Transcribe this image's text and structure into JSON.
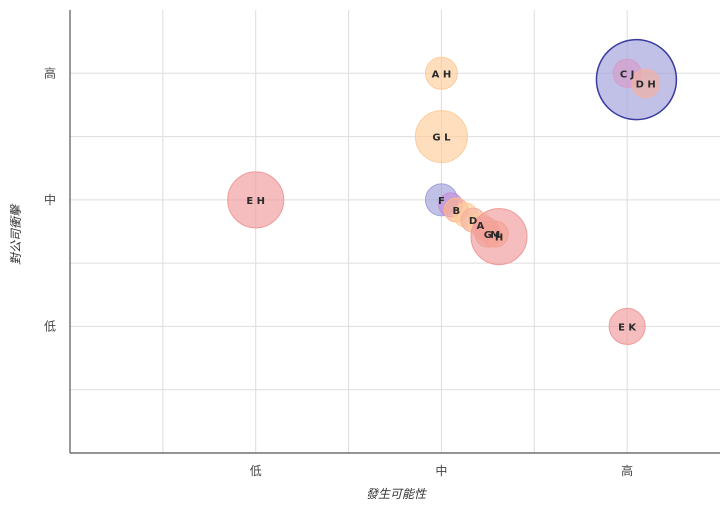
{
  "chart_data": {
    "type": "scatter",
    "title": "",
    "xlabel": "發生可能性",
    "ylabel": "對公司衝擊",
    "x_ticks": [
      "低",
      "中",
      "高"
    ],
    "y_ticks": [
      "低",
      "中",
      "高"
    ],
    "xlim": [
      0,
      3.5
    ],
    "ylim": [
      0,
      3.5
    ],
    "grid": true,
    "legend": "none",
    "points": [
      {
        "label": "E H",
        "x": 1.0,
        "y": 2.0,
        "size": 28,
        "color": "#ef9a9a"
      },
      {
        "label": "A H",
        "x": 2.0,
        "y": 3.0,
        "size": 16,
        "color": "#ffcc99"
      },
      {
        "label": "G L",
        "x": 2.0,
        "y": 2.5,
        "size": 26,
        "color": "#ffcc99"
      },
      {
        "label": "F",
        "x": 2.0,
        "y": 2.0,
        "size": 16,
        "color": "#9fa0dc"
      },
      {
        "label": "",
        "x": 2.05,
        "y": 1.96,
        "size": 12,
        "color": "#c58fd8"
      },
      {
        "label": "B",
        "x": 2.08,
        "y": 1.92,
        "size": 12,
        "color": "#ffb38a"
      },
      {
        "label": "",
        "x": 2.13,
        "y": 1.88,
        "size": 12,
        "color": "#ffcc99"
      },
      {
        "label": "D",
        "x": 2.17,
        "y": 1.84,
        "size": 12,
        "color": "#f5b0a0"
      },
      {
        "label": "A",
        "x": 2.21,
        "y": 1.8,
        "size": 12,
        "color": "#ffcc99"
      },
      {
        "label": "",
        "x": 2.24,
        "y": 1.77,
        "size": 12,
        "color": "#f5b0a0"
      },
      {
        "label": "G",
        "x": 2.25,
        "y": 1.73,
        "size": 13,
        "color": "#f5b0a0"
      },
      {
        "label": "M",
        "x": 2.29,
        "y": 1.73,
        "size": 13,
        "color": "#ffb38a"
      },
      {
        "label": "H",
        "x": 2.31,
        "y": 1.71,
        "size": 28,
        "color": "#ef9a9a"
      },
      {
        "label": "",
        "x": 3.05,
        "y": 2.95,
        "size": 40,
        "color": "#9fa0dc",
        "outline": "#3a3aa0"
      },
      {
        "label": "C J",
        "x": 3.0,
        "y": 3.0,
        "size": 14,
        "color": "#d79bc9"
      },
      {
        "label": "D H",
        "x": 3.1,
        "y": 2.92,
        "size": 14,
        "color": "#f5b0a0"
      },
      {
        "label": "E K",
        "x": 3.0,
        "y": 1.0,
        "size": 18,
        "color": "#ef9a9a"
      }
    ]
  }
}
